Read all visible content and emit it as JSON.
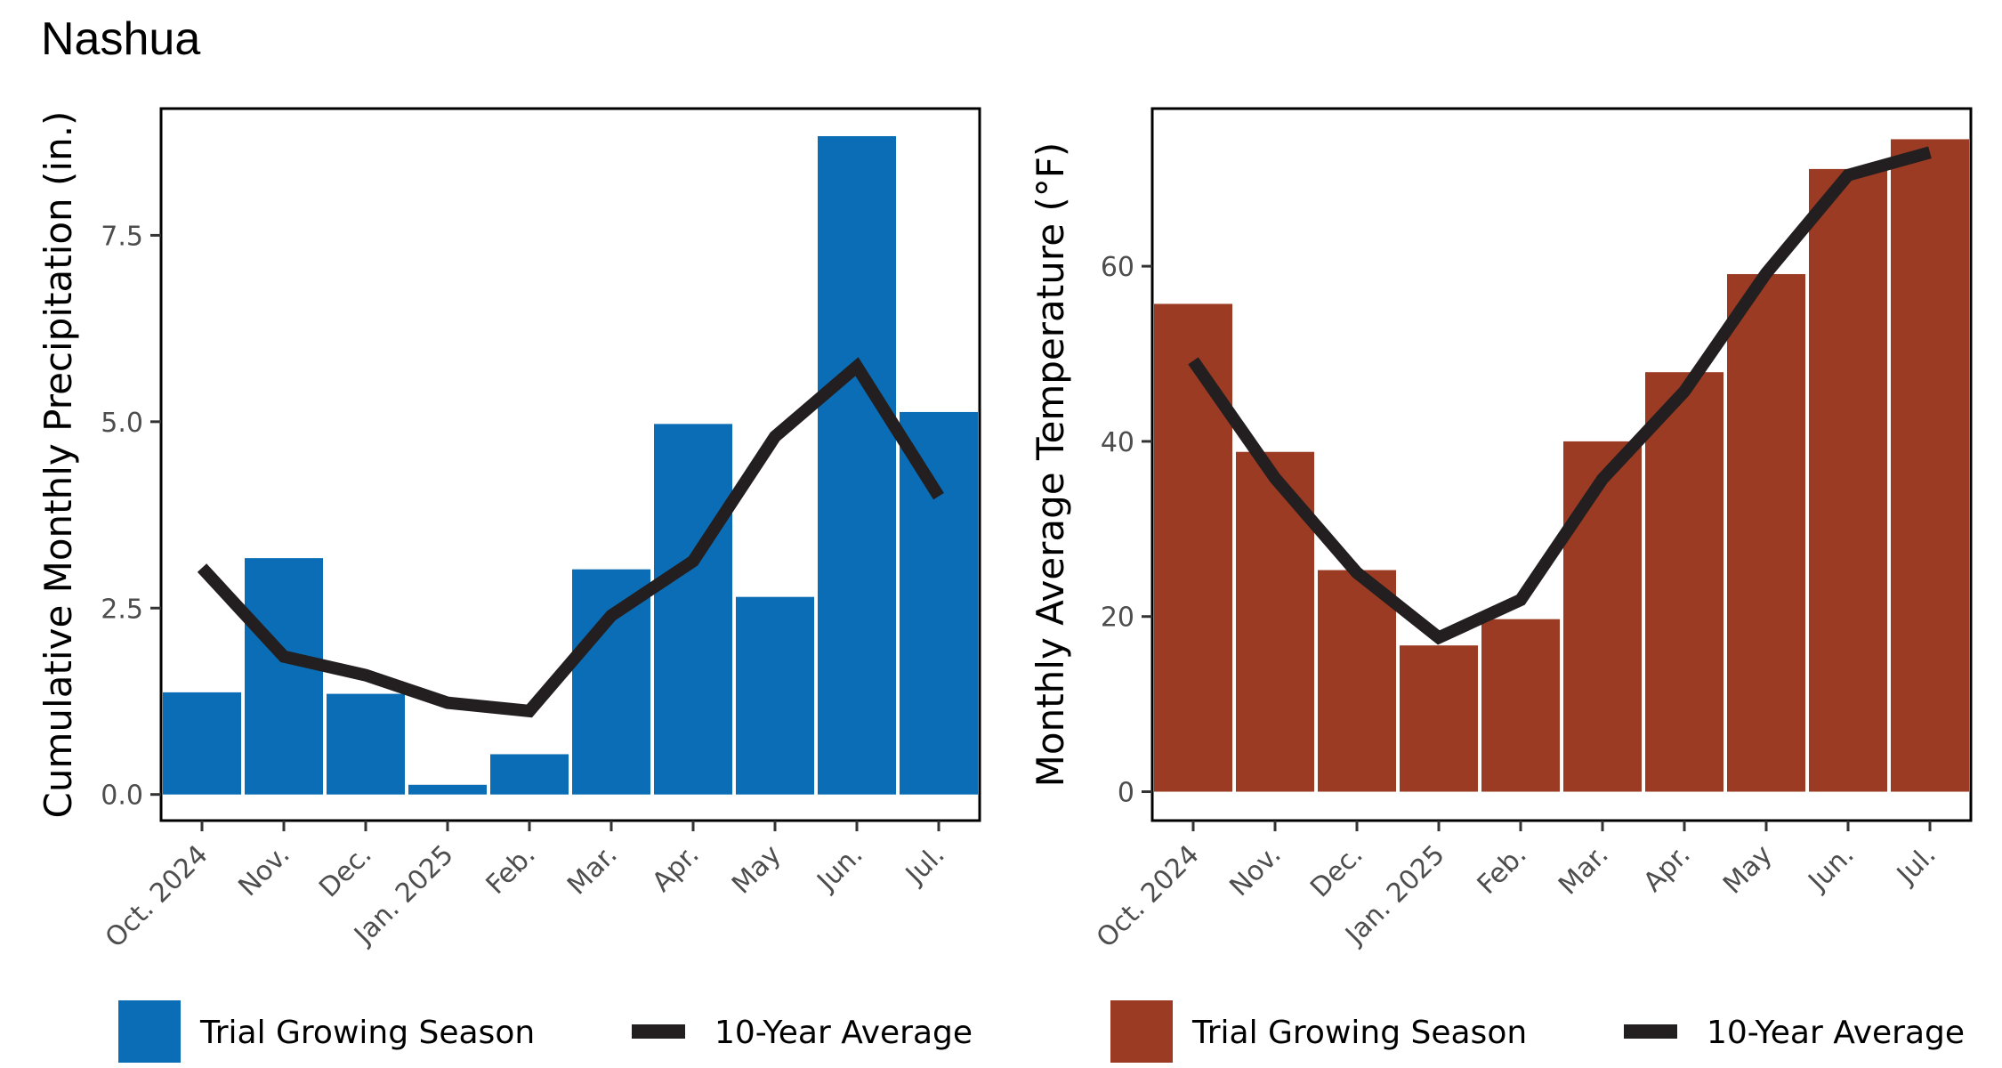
{
  "title": "Nashua",
  "chart_data": [
    {
      "type": "bar",
      "categories": [
        "Oct. 2024",
        "Nov.",
        "Dec.",
        "Jan. 2025",
        "Feb.",
        "Mar.",
        "Apr.",
        "May",
        "Jun.",
        "Jul."
      ],
      "series": [
        {
          "name": "Trial Growing Season",
          "kind": "bar",
          "color": "#0b6db5",
          "values": [
            1.37,
            3.17,
            1.35,
            0.13,
            0.54,
            3.02,
            4.97,
            2.65,
            8.83,
            5.13
          ]
        },
        {
          "name": "10-Year Average",
          "kind": "line",
          "color": "#231f20",
          "values": [
            3.04,
            1.85,
            1.6,
            1.23,
            1.12,
            2.4,
            3.13,
            4.8,
            5.74,
            4.0
          ]
        }
      ],
      "ylabel": "Cumulative Monthly Precipitation (in.)",
      "xlabel": "",
      "ylim": [
        -0.35,
        9.2
      ],
      "yticks": [
        0.0,
        2.5,
        5.0,
        7.5
      ],
      "ytick_labels": [
        "0.0",
        "2.5",
        "5.0",
        "7.5"
      ],
      "legend": {
        "position": "bottom",
        "entries": [
          "Trial Growing Season",
          "10-Year Average"
        ]
      }
    },
    {
      "type": "bar",
      "categories": [
        "Oct. 2024",
        "Nov.",
        "Dec.",
        "Jan. 2025",
        "Feb.",
        "Mar.",
        "Apr.",
        "May",
        "Jun.",
        "Jul."
      ],
      "series": [
        {
          "name": "Trial Growing Season",
          "kind": "bar",
          "color": "#9b3b23",
          "values": [
            55.7,
            38.8,
            25.3,
            16.7,
            19.7,
            40.0,
            47.9,
            59.1,
            71.1,
            74.5
          ]
        },
        {
          "name": "10-Year Average",
          "kind": "line",
          "color": "#231f20",
          "values": [
            49.2,
            35.8,
            25.0,
            17.6,
            21.9,
            35.7,
            45.7,
            59.2,
            70.4,
            73.0
          ]
        }
      ],
      "ylabel": "Monthly Average Temperature  (°F)",
      "xlabel": "",
      "ylim": [
        -3.3,
        78.0
      ],
      "yticks": [
        0,
        20,
        40,
        60
      ],
      "ytick_labels": [
        "0",
        "20",
        "40",
        "60"
      ],
      "legend": {
        "position": "bottom",
        "entries": [
          "Trial Growing Season",
          "10-Year Average"
        ]
      }
    }
  ]
}
